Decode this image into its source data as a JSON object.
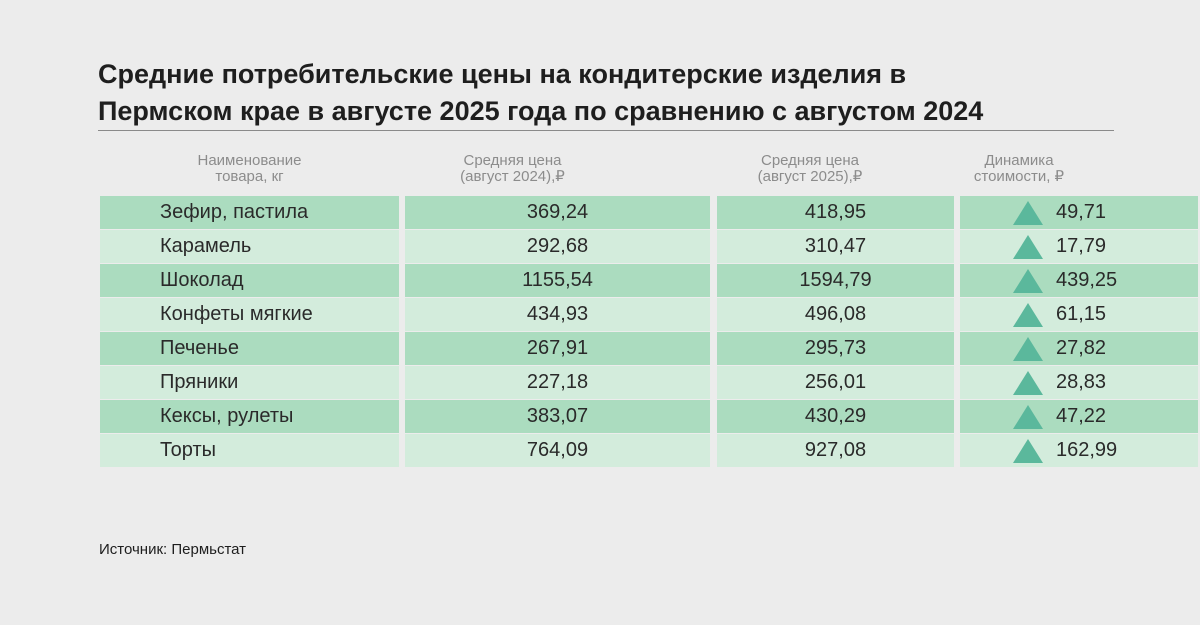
{
  "chart_data": {
    "type": "table",
    "title_line1": "Средние потребительские цены на кондитерские изделия в",
    "title_line2": "Пермском крае в августе 2025 года по сравнению с августом 2024",
    "columns": [
      {
        "line1": "Наименование",
        "line2": "товара, кг"
      },
      {
        "line1": "Средняя цена",
        "line2": "(август 2024),₽"
      },
      {
        "line1": "Средняя цена",
        "line2": "(август 2025),₽"
      },
      {
        "line1": "Динамика",
        "line2": "стоимости, ₽"
      }
    ],
    "rows": [
      {
        "name": "Зефир, пастила",
        "price_2024": "369,24",
        "price_2025": "418,95",
        "change": "49,71",
        "direction": "up"
      },
      {
        "name": "Карамель",
        "price_2024": "292,68",
        "price_2025": "310,47",
        "change": "17,79",
        "direction": "up"
      },
      {
        "name": "Шоколад",
        "price_2024": "1155,54",
        "price_2025": "1594,79",
        "change": "439,25",
        "direction": "up"
      },
      {
        "name": "Конфеты мягкие",
        "price_2024": "434,93",
        "price_2025": "496,08",
        "change": "61,15",
        "direction": "up"
      },
      {
        "name": "Печенье",
        "price_2024": "267,91",
        "price_2025": "295,73",
        "change": "27,82",
        "direction": "up"
      },
      {
        "name": "Пряники",
        "price_2024": "227,18",
        "price_2025": "256,01",
        "change": "28,83",
        "direction": "up"
      },
      {
        "name": "Кексы, рулеты",
        "price_2024": "383,07",
        "price_2025": "430,29",
        "change": "47,22",
        "direction": "up"
      },
      {
        "name": "Торты",
        "price_2024": "764,09",
        "price_2025": "927,08",
        "change": "162,99",
        "direction": "up"
      }
    ],
    "source_label": "Источник:",
    "source_value": "Пермьстат",
    "colors": {
      "row_dark": "#abdcbf",
      "row_light": "#d3ecdc",
      "up_arrow": "#5bb89c"
    }
  }
}
